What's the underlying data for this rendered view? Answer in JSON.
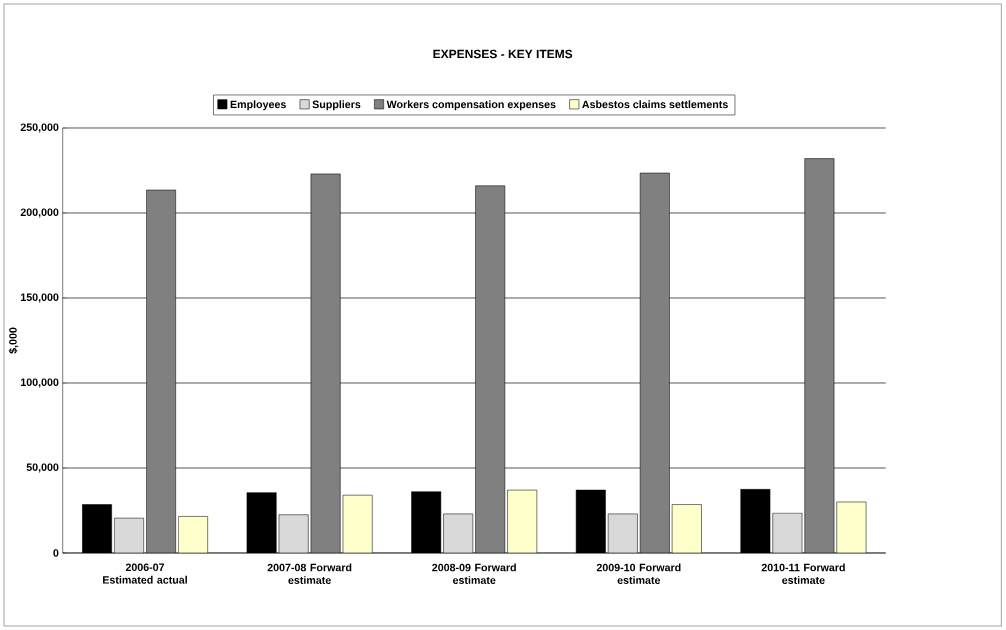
{
  "chart_data": {
    "type": "bar",
    "title": "EXPENSES - KEY ITEMS",
    "ylabel": "$,000",
    "categories": [
      "2006-07 Estimated actual",
      "2007-08 Forward estimate",
      "2008-09 Forward estimate",
      "2009-10 Forward estimate",
      "2010-11 Forward estimate"
    ],
    "series": [
      {
        "name": "Employees",
        "color": "#000000",
        "values": [
          28500,
          35500,
          36000,
          37000,
          37500
        ]
      },
      {
        "name": "Suppliers",
        "color": "#d9d9d9",
        "values": [
          20500,
          22500,
          23000,
          23000,
          23500
        ]
      },
      {
        "name": "Workers compensation expenses",
        "color": "#808080",
        "values": [
          213500,
          223000,
          216000,
          223500,
          232000
        ]
      },
      {
        "name": "Asbestos claims settlements",
        "color": "#ffffcc",
        "values": [
          21500,
          34000,
          37000,
          28500,
          30000
        ]
      }
    ],
    "ylim": [
      0,
      250000
    ],
    "yticks": [
      {
        "value": 0,
        "label": "0"
      },
      {
        "value": 50000,
        "label": "50,000"
      },
      {
        "value": 100000,
        "label": "100,000"
      },
      {
        "value": 150000,
        "label": "150,000"
      },
      {
        "value": 200000,
        "label": "200,000"
      },
      {
        "value": 250000,
        "label": "250,000"
      }
    ],
    "grid": "y",
    "legend": "top"
  }
}
